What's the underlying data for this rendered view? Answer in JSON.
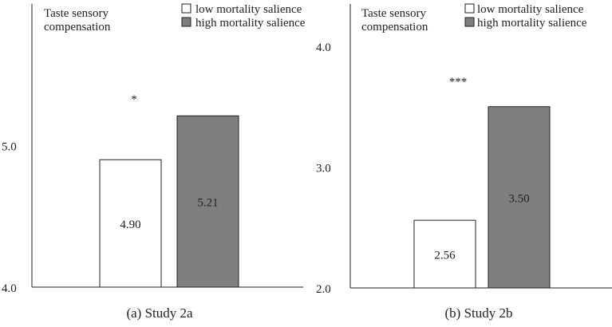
{
  "chart_data": [
    {
      "type": "bar",
      "title": "(a) Study 2a",
      "ylabel": "Taste sensory compensation",
      "ylabel_lines": [
        "Taste sensory",
        "compensation"
      ],
      "ylim": [
        4.0,
        6.0
      ],
      "ticks": [
        {
          "value": 4.0,
          "label": "4.0"
        },
        {
          "value": 5.0,
          "label": "5.0"
        }
      ],
      "series": [
        {
          "name": "low mortality salience",
          "value": 4.9,
          "label": "4.90",
          "color": "#ffffff"
        },
        {
          "name": "high mortality salience",
          "value": 5.21,
          "label": "5.21",
          "color": "#7f7f7f"
        }
      ],
      "significance": "*"
    },
    {
      "type": "bar",
      "title": "(b) Study 2b",
      "ylabel": "Taste sensory compensation",
      "ylabel_lines": [
        "Taste sensory",
        "compensation"
      ],
      "ylim": [
        2.0,
        4.35
      ],
      "ticks": [
        {
          "value": 2.0,
          "label": "2.0"
        },
        {
          "value": 3.0,
          "label": "3.0"
        },
        {
          "value": 4.0,
          "label": "4.0"
        }
      ],
      "series": [
        {
          "name": "low mortality salience",
          "value": 2.56,
          "label": "2.56",
          "color": "#ffffff"
        },
        {
          "name": "high mortality salience",
          "value": 3.5,
          "label": "3.50",
          "color": "#7f7f7f"
        }
      ],
      "significance": "***"
    }
  ]
}
